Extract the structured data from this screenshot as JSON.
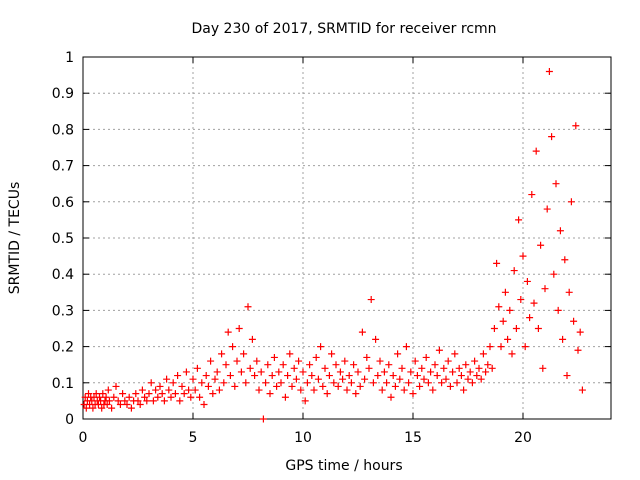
{
  "chart_data": {
    "type": "scatter",
    "title": "Day 230 of 2017, SRMTID for receiver rcmn",
    "xlabel": "GPS time / hours",
    "ylabel": "SRMTID / TECUs",
    "xlim": [
      0,
      24
    ],
    "ylim": [
      0,
      1
    ],
    "xticks": [
      0,
      5,
      10,
      15,
      20
    ],
    "yticks": [
      0,
      0.1,
      0.2,
      0.3,
      0.4,
      0.5,
      0.6,
      0.7,
      0.8,
      0.9,
      1
    ],
    "grid": true,
    "marker": "+",
    "series": [
      {
        "name": "SRMTID",
        "color": "#ff0000",
        "points": [
          [
            0.05,
            0.04
          ],
          [
            0.1,
            0.06
          ],
          [
            0.15,
            0.03
          ],
          [
            0.2,
            0.05
          ],
          [
            0.25,
            0.07
          ],
          [
            0.3,
            0.04
          ],
          [
            0.35,
            0.06
          ],
          [
            0.4,
            0.05
          ],
          [
            0.45,
            0.03
          ],
          [
            0.5,
            0.06
          ],
          [
            0.55,
            0.04
          ],
          [
            0.6,
            0.07
          ],
          [
            0.65,
            0.05
          ],
          [
            0.7,
            0.04
          ],
          [
            0.75,
            0.06
          ],
          [
            0.8,
            0.05
          ],
          [
            0.85,
            0.03
          ],
          [
            0.9,
            0.07
          ],
          [
            0.95,
            0.04
          ],
          [
            1.0,
            0.05
          ],
          [
            1.05,
            0.06
          ],
          [
            1.1,
            0.04
          ],
          [
            1.15,
            0.08
          ],
          [
            1.2,
            0.05
          ],
          [
            1.3,
            0.03
          ],
          [
            1.4,
            0.06
          ],
          [
            1.5,
            0.09
          ],
          [
            1.6,
            0.05
          ],
          [
            1.7,
            0.04
          ],
          [
            1.8,
            0.07
          ],
          [
            1.9,
            0.05
          ],
          [
            2.0,
            0.04
          ],
          [
            2.1,
            0.06
          ],
          [
            2.2,
            0.03
          ],
          [
            2.3,
            0.05
          ],
          [
            2.4,
            0.07
          ],
          [
            2.5,
            0.05
          ],
          [
            2.6,
            0.04
          ],
          [
            2.7,
            0.08
          ],
          [
            2.8,
            0.06
          ],
          [
            2.9,
            0.05
          ],
          [
            3.0,
            0.07
          ],
          [
            3.1,
            0.1
          ],
          [
            3.2,
            0.05
          ],
          [
            3.3,
            0.08
          ],
          [
            3.4,
            0.06
          ],
          [
            3.5,
            0.09
          ],
          [
            3.6,
            0.07
          ],
          [
            3.7,
            0.05
          ],
          [
            3.8,
            0.11
          ],
          [
            3.9,
            0.08
          ],
          [
            4.0,
            0.06
          ],
          [
            4.1,
            0.1
          ],
          [
            4.2,
            0.07
          ],
          [
            4.3,
            0.12
          ],
          [
            4.4,
            0.05
          ],
          [
            4.5,
            0.09
          ],
          [
            4.6,
            0.07
          ],
          [
            4.7,
            0.13
          ],
          [
            4.8,
            0.08
          ],
          [
            4.9,
            0.06
          ],
          [
            5.0,
            0.11
          ],
          [
            5.1,
            0.08
          ],
          [
            5.2,
            0.14
          ],
          [
            5.3,
            0.06
          ],
          [
            5.4,
            0.1
          ],
          [
            5.5,
            0.04
          ],
          [
            5.6,
            0.12
          ],
          [
            5.7,
            0.09
          ],
          [
            5.8,
            0.16
          ],
          [
            5.9,
            0.07
          ],
          [
            6.0,
            0.11
          ],
          [
            6.1,
            0.13
          ],
          [
            6.2,
            0.08
          ],
          [
            6.3,
            0.18
          ],
          [
            6.4,
            0.1
          ],
          [
            6.5,
            0.15
          ],
          [
            6.6,
            0.24
          ],
          [
            6.7,
            0.12
          ],
          [
            6.8,
            0.2
          ],
          [
            6.9,
            0.09
          ],
          [
            7.0,
            0.16
          ],
          [
            7.1,
            0.25
          ],
          [
            7.2,
            0.13
          ],
          [
            7.3,
            0.18
          ],
          [
            7.4,
            0.1
          ],
          [
            7.5,
            0.31
          ],
          [
            7.6,
            0.14
          ],
          [
            7.7,
            0.22
          ],
          [
            7.8,
            0.12
          ],
          [
            7.9,
            0.16
          ],
          [
            8.0,
            0.08
          ],
          [
            8.1,
            0.13
          ],
          [
            8.2,
            0.0
          ],
          [
            8.3,
            0.1
          ],
          [
            8.4,
            0.15
          ],
          [
            8.5,
            0.07
          ],
          [
            8.6,
            0.12
          ],
          [
            8.7,
            0.17
          ],
          [
            8.8,
            0.09
          ],
          [
            8.9,
            0.13
          ],
          [
            9.0,
            0.1
          ],
          [
            9.1,
            0.15
          ],
          [
            9.2,
            0.06
          ],
          [
            9.3,
            0.12
          ],
          [
            9.4,
            0.18
          ],
          [
            9.5,
            0.09
          ],
          [
            9.6,
            0.14
          ],
          [
            9.7,
            0.11
          ],
          [
            9.8,
            0.16
          ],
          [
            9.9,
            0.08
          ],
          [
            10.0,
            0.13
          ],
          [
            10.1,
            0.05
          ],
          [
            10.2,
            0.1
          ],
          [
            10.3,
            0.15
          ],
          [
            10.4,
            0.12
          ],
          [
            10.5,
            0.08
          ],
          [
            10.6,
            0.17
          ],
          [
            10.7,
            0.11
          ],
          [
            10.8,
            0.2
          ],
          [
            10.9,
            0.09
          ],
          [
            11.0,
            0.14
          ],
          [
            11.1,
            0.07
          ],
          [
            11.2,
            0.12
          ],
          [
            11.3,
            0.18
          ],
          [
            11.4,
            0.1
          ],
          [
            11.5,
            0.15
          ],
          [
            11.6,
            0.09
          ],
          [
            11.7,
            0.13
          ],
          [
            11.8,
            0.11
          ],
          [
            11.9,
            0.16
          ],
          [
            12.0,
            0.08
          ],
          [
            12.1,
            0.12
          ],
          [
            12.2,
            0.1
          ],
          [
            12.3,
            0.15
          ],
          [
            12.4,
            0.07
          ],
          [
            12.5,
            0.13
          ],
          [
            12.6,
            0.09
          ],
          [
            12.7,
            0.24
          ],
          [
            12.8,
            0.11
          ],
          [
            12.9,
            0.17
          ],
          [
            13.0,
            0.14
          ],
          [
            13.1,
            0.33
          ],
          [
            13.2,
            0.1
          ],
          [
            13.3,
            0.22
          ],
          [
            13.4,
            0.12
          ],
          [
            13.5,
            0.16
          ],
          [
            13.6,
            0.08
          ],
          [
            13.7,
            0.13
          ],
          [
            13.8,
            0.1
          ],
          [
            13.9,
            0.15
          ],
          [
            14.0,
            0.06
          ],
          [
            14.1,
            0.12
          ],
          [
            14.2,
            0.09
          ],
          [
            14.3,
            0.18
          ],
          [
            14.4,
            0.11
          ],
          [
            14.5,
            0.14
          ],
          [
            14.6,
            0.08
          ],
          [
            14.7,
            0.2
          ],
          [
            14.8,
            0.1
          ],
          [
            14.9,
            0.13
          ],
          [
            15.0,
            0.07
          ],
          [
            15.1,
            0.16
          ],
          [
            15.2,
            0.12
          ],
          [
            15.3,
            0.09
          ],
          [
            15.4,
            0.14
          ],
          [
            15.5,
            0.11
          ],
          [
            15.6,
            0.17
          ],
          [
            15.7,
            0.1
          ],
          [
            15.8,
            0.13
          ],
          [
            15.9,
            0.08
          ],
          [
            16.0,
            0.15
          ],
          [
            16.1,
            0.12
          ],
          [
            16.2,
            0.19
          ],
          [
            16.3,
            0.1
          ],
          [
            16.4,
            0.14
          ],
          [
            16.5,
            0.11
          ],
          [
            16.6,
            0.16
          ],
          [
            16.7,
            0.09
          ],
          [
            16.8,
            0.13
          ],
          [
            16.9,
            0.18
          ],
          [
            17.0,
            0.1
          ],
          [
            17.1,
            0.14
          ],
          [
            17.2,
            0.12
          ],
          [
            17.3,
            0.08
          ],
          [
            17.4,
            0.15
          ],
          [
            17.5,
            0.11
          ],
          [
            17.6,
            0.13
          ],
          [
            17.7,
            0.1
          ],
          [
            17.8,
            0.16
          ],
          [
            17.9,
            0.12
          ],
          [
            18.0,
            0.14
          ],
          [
            18.1,
            0.11
          ],
          [
            18.2,
            0.18
          ],
          [
            18.3,
            0.13
          ],
          [
            18.4,
            0.15
          ],
          [
            18.5,
            0.2
          ],
          [
            18.6,
            0.14
          ],
          [
            18.7,
            0.25
          ],
          [
            18.8,
            0.43
          ],
          [
            18.9,
            0.31
          ],
          [
            19.0,
            0.2
          ],
          [
            19.1,
            0.27
          ],
          [
            19.2,
            0.35
          ],
          [
            19.3,
            0.22
          ],
          [
            19.4,
            0.3
          ],
          [
            19.5,
            0.18
          ],
          [
            19.6,
            0.41
          ],
          [
            19.7,
            0.25
          ],
          [
            19.8,
            0.55
          ],
          [
            19.9,
            0.33
          ],
          [
            20.0,
            0.45
          ],
          [
            20.1,
            0.2
          ],
          [
            20.2,
            0.38
          ],
          [
            20.3,
            0.28
          ],
          [
            20.4,
            0.62
          ],
          [
            20.5,
            0.32
          ],
          [
            20.6,
            0.74
          ],
          [
            20.7,
            0.25
          ],
          [
            20.8,
            0.48
          ],
          [
            20.9,
            0.14
          ],
          [
            21.0,
            0.36
          ],
          [
            21.1,
            0.58
          ],
          [
            21.2,
            0.96
          ],
          [
            21.3,
            0.78
          ],
          [
            21.4,
            0.4
          ],
          [
            21.5,
            0.65
          ],
          [
            21.6,
            0.3
          ],
          [
            21.7,
            0.52
          ],
          [
            21.8,
            0.22
          ],
          [
            21.9,
            0.44
          ],
          [
            22.0,
            0.12
          ],
          [
            22.1,
            0.35
          ],
          [
            22.2,
            0.6
          ],
          [
            22.3,
            0.27
          ],
          [
            22.4,
            0.81
          ],
          [
            22.5,
            0.19
          ],
          [
            22.6,
            0.24
          ],
          [
            22.7,
            0.08
          ]
        ]
      }
    ]
  }
}
